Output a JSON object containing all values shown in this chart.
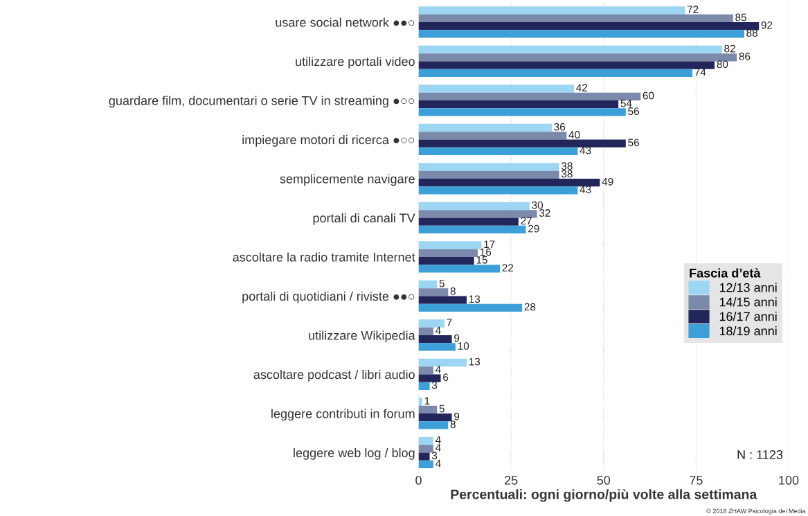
{
  "chart_data": {
    "type": "bar",
    "orientation": "horizontal",
    "xlabel": "Percentuali: ogni giorno/più volte alla settimana",
    "legend_title": "Fascia d’età",
    "categories": [
      "usare social network ●●○",
      "utilizzare portali video",
      "guardare film, documentari o serie TV in streaming ●○○",
      "impiegare motori di ricerca ●○○",
      "semplicemente navigare",
      "portali di canali TV",
      "ascoltare la radio tramite Internet",
      "portali di quotidiani / riviste ●●○",
      "utilizzare Wikipedia",
      "ascoltare podcast / libri audio",
      "leggere contributi in forum",
      "leggere web log / blog"
    ],
    "series": [
      {
        "name": "12/13 anni",
        "color": "#9dd6f3",
        "values": [
          72,
          82,
          42,
          36,
          38,
          30,
          17,
          5,
          7,
          13,
          1,
          4
        ]
      },
      {
        "name": "14/15 anni",
        "color": "#7b89ab",
        "values": [
          85,
          86,
          60,
          40,
          38,
          32,
          16,
          8,
          4,
          4,
          5,
          4
        ]
      },
      {
        "name": "16/17 anni",
        "color": "#23265a",
        "values": [
          92,
          80,
          54,
          56,
          49,
          27,
          15,
          13,
          9,
          6,
          9,
          3
        ]
      },
      {
        "name": "18/19 anni",
        "color": "#3d9fd8",
        "values": [
          88,
          74,
          56,
          43,
          43,
          29,
          22,
          28,
          10,
          3,
          8,
          4
        ]
      }
    ],
    "xlim": [
      0,
      100
    ],
    "xticks": [
      0,
      25,
      50,
      75,
      100
    ],
    "grid": "x",
    "legend": "right",
    "data_labels": true,
    "annotations": [
      "N : 1123",
      "© 2018 ZHAW Psicologia dei Media"
    ]
  }
}
